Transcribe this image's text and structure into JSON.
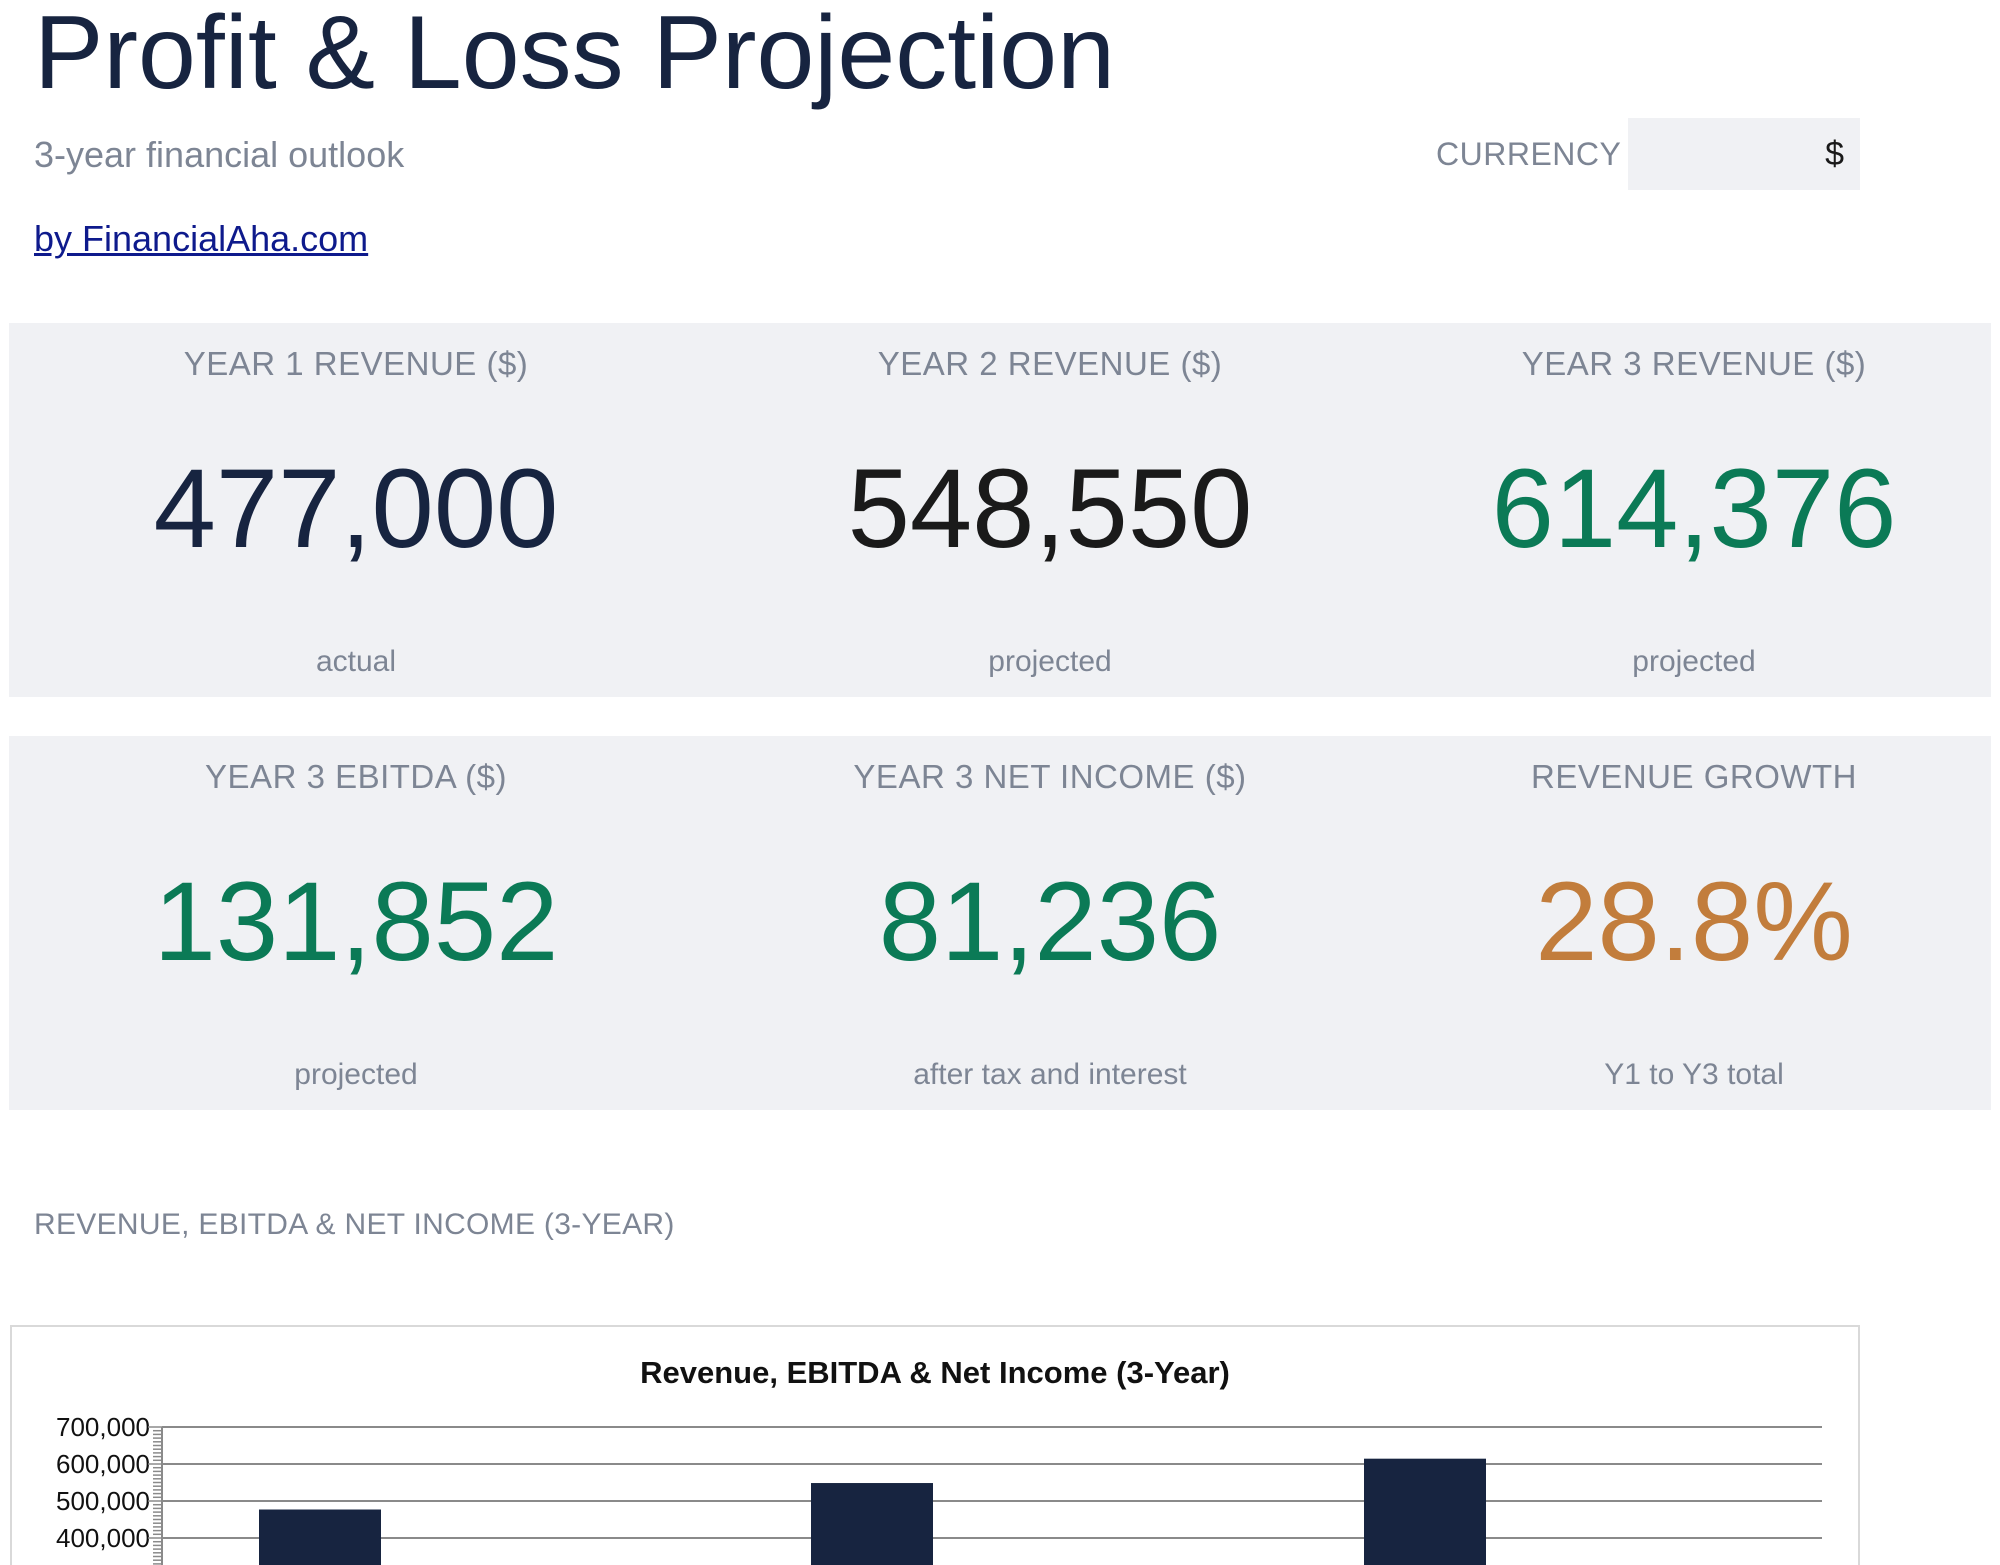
{
  "header": {
    "title": "Profit & Loss Projection",
    "subtitle": "3-year financial outlook",
    "credit": "by FinancialAha.com",
    "currency_label": "CURRENCY",
    "currency_value": "$"
  },
  "kpis_top": [
    {
      "label": "YEAR 1 REVENUE ($)",
      "value": "477,000",
      "note": "actual",
      "color": "#172440"
    },
    {
      "label": "YEAR 2 REVENUE ($)",
      "value": "548,550",
      "note": "projected",
      "color": "#1a1a1a"
    },
    {
      "label": "YEAR 3 REVENUE ($)",
      "value": "614,376",
      "note": "projected",
      "color": "#0b7a56"
    }
  ],
  "kpis_bottom": [
    {
      "label": "YEAR 3 EBITDA ($)",
      "value": "131,852",
      "note": "projected",
      "color": "#0b7a56"
    },
    {
      "label": "YEAR 3 NET INCOME ($)",
      "value": "81,236",
      "note": "after tax and interest",
      "color": "#0b7a56"
    },
    {
      "label": "REVENUE GROWTH",
      "value": "28.8%",
      "note": "Y1 to Y3 total",
      "color": "#c27d3c"
    }
  ],
  "section": {
    "chart_section_title": "REVENUE, EBITDA & NET INCOME (3-YEAR)"
  },
  "chart_data": {
    "type": "bar",
    "title": "Revenue, EBITDA & Net Income (3-Year)",
    "categories": [
      "",
      "",
      ""
    ],
    "series": [
      {
        "values": [
          477000,
          548550,
          614376
        ],
        "color": "#172440"
      }
    ],
    "ylim": [
      0,
      700000
    ],
    "yticks": [
      {
        "value": 700000,
        "label": "700,000"
      },
      {
        "value": 600000,
        "label": "600,000"
      },
      {
        "value": 500000,
        "label": "500,000"
      },
      {
        "value": 400000,
        "label": "400,000"
      }
    ],
    "grid": true,
    "xlabel": "",
    "ylabel": ""
  }
}
